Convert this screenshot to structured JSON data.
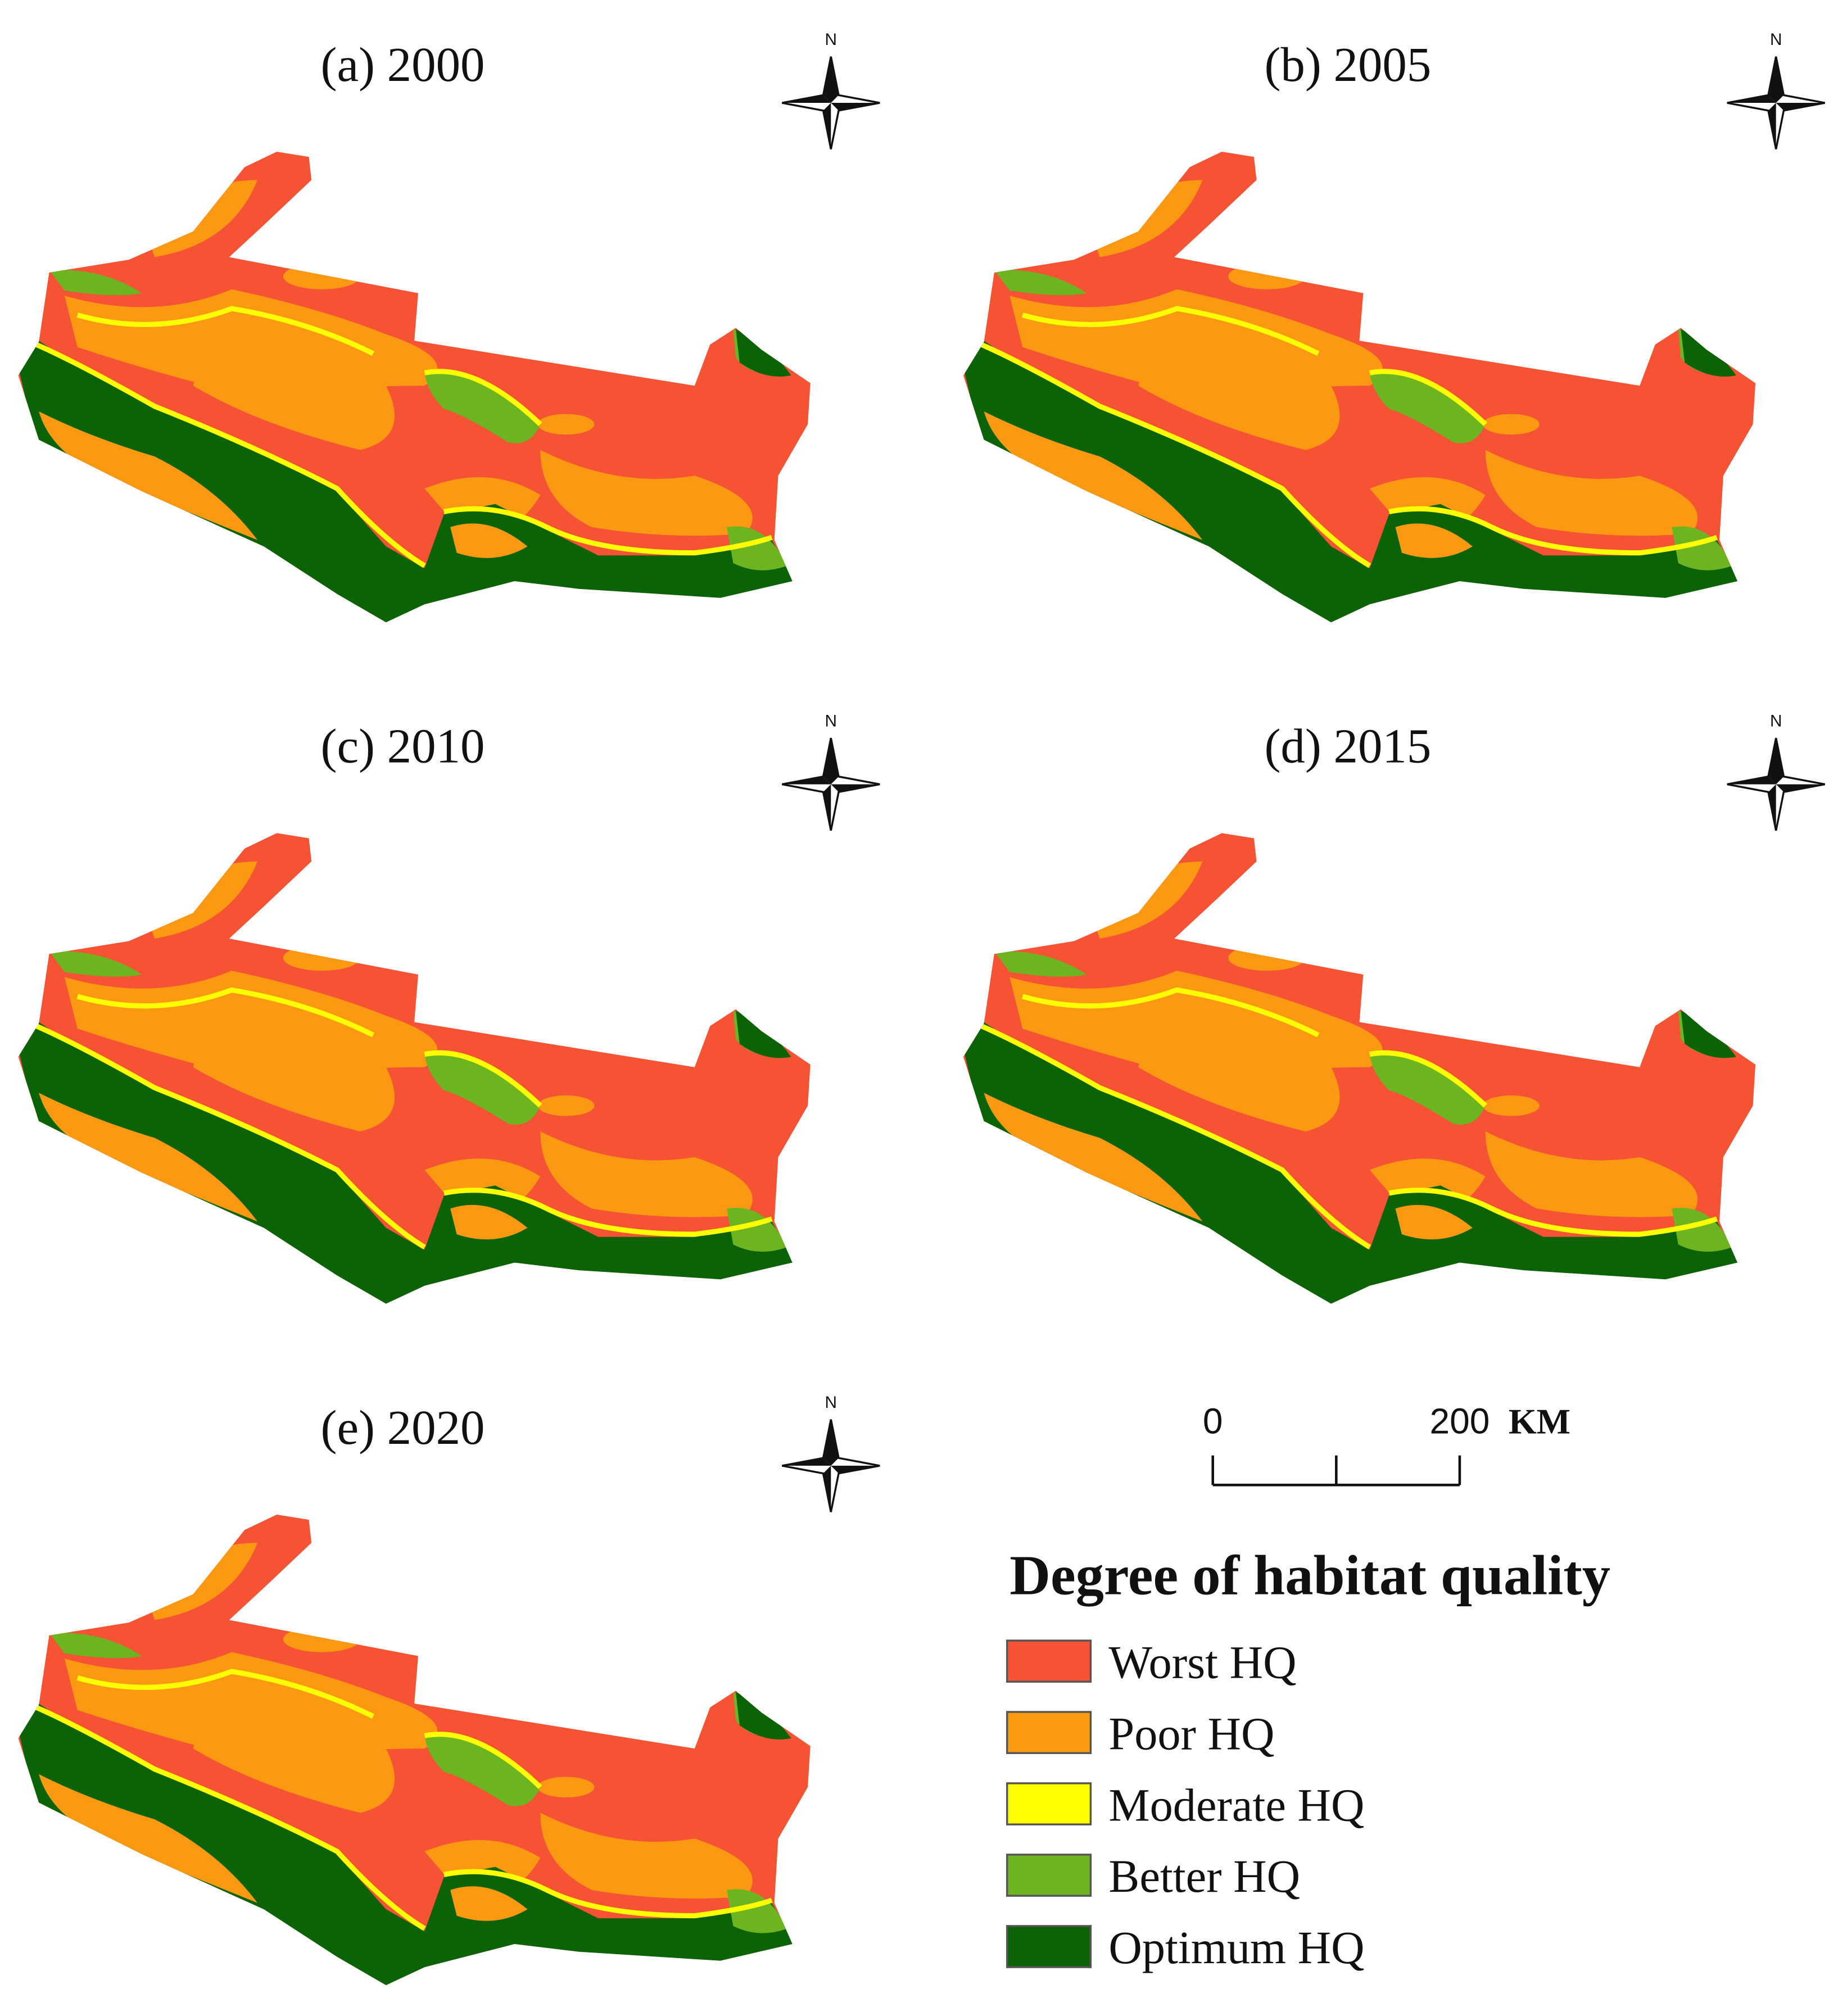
{
  "panels": [
    {
      "title": "(a) 2000",
      "north": "N"
    },
    {
      "title": "(b) 2005",
      "north": "N"
    },
    {
      "title": "(c) 2010",
      "north": "N"
    },
    {
      "title": "(d) 2015",
      "north": "N"
    },
    {
      "title": "(e) 2020",
      "north": "N"
    }
  ],
  "scale_bar": {
    "ticks": [
      0,
      200
    ],
    "unit": "KM"
  },
  "legend": {
    "title": "Degree of habitat quality",
    "items": [
      {
        "label": "Worst HQ",
        "color": "#f65234"
      },
      {
        "label": "Poor HQ",
        "color": "#fb9a12"
      },
      {
        "label": "Moderate HQ",
        "color": "#ffff00"
      },
      {
        "label": "Better HQ",
        "color": "#6db520"
      },
      {
        "label": "Optimum HQ",
        "color": "#0b6308"
      }
    ]
  }
}
